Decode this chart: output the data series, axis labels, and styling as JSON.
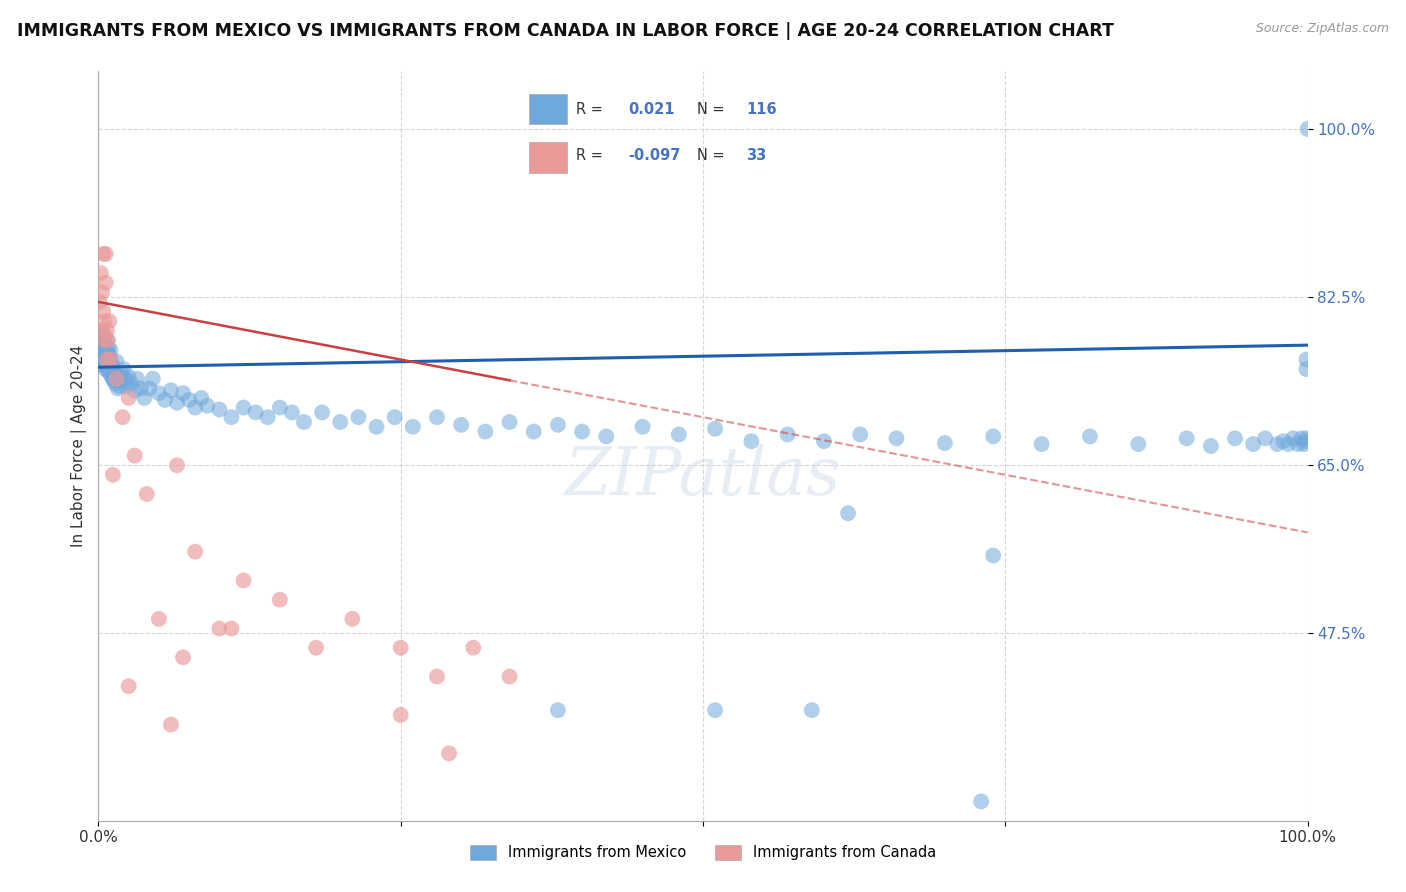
{
  "title": "IMMIGRANTS FROM MEXICO VS IMMIGRANTS FROM CANADA IN LABOR FORCE | AGE 20-24 CORRELATION CHART",
  "source": "Source: ZipAtlas.com",
  "ylabel": "In Labor Force | Age 20-24",
  "legend_label_mexico": "Immigrants from Mexico",
  "legend_label_canada": "Immigrants from Canada",
  "mexico_color": "#6fa8dc",
  "canada_color": "#ea9999",
  "mexico_line_color": "#1f5fad",
  "canada_line_color": "#c94040",
  "background_color": "#ffffff",
  "grid_color": "#cccccc",
  "watermark": "ZIPatlas",
  "mexico_R": 0.021,
  "mexico_N": 116,
  "canada_R": -0.097,
  "canada_N": 33,
  "xlim": [
    0.0,
    1.0
  ],
  "ylim": [
    0.28,
    1.06
  ],
  "yticks": [
    0.475,
    0.65,
    0.825,
    1.0
  ],
  "ytick_labels": [
    "47.5%",
    "65.0%",
    "82.5%",
    "100.0%"
  ],
  "mexico_x": [
    0.001,
    0.001,
    0.002,
    0.002,
    0.002,
    0.003,
    0.003,
    0.003,
    0.003,
    0.004,
    0.004,
    0.004,
    0.005,
    0.005,
    0.005,
    0.005,
    0.006,
    0.006,
    0.006,
    0.007,
    0.007,
    0.007,
    0.008,
    0.008,
    0.008,
    0.009,
    0.009,
    0.01,
    0.01,
    0.01,
    0.011,
    0.011,
    0.012,
    0.012,
    0.013,
    0.013,
    0.014,
    0.015,
    0.015,
    0.016,
    0.017,
    0.018,
    0.019,
    0.02,
    0.021,
    0.022,
    0.023,
    0.025,
    0.027,
    0.03,
    0.032,
    0.035,
    0.038,
    0.042,
    0.045,
    0.05,
    0.055,
    0.06,
    0.065,
    0.07,
    0.075,
    0.08,
    0.085,
    0.09,
    0.1,
    0.11,
    0.12,
    0.13,
    0.14,
    0.15,
    0.16,
    0.17,
    0.185,
    0.2,
    0.215,
    0.23,
    0.245,
    0.26,
    0.28,
    0.3,
    0.32,
    0.34,
    0.36,
    0.38,
    0.4,
    0.42,
    0.45,
    0.48,
    0.51,
    0.54,
    0.57,
    0.6,
    0.63,
    0.66,
    0.7,
    0.74,
    0.78,
    0.82,
    0.86,
    0.9,
    0.92,
    0.94,
    0.955,
    0.965,
    0.975,
    0.98,
    0.984,
    0.988,
    0.992,
    0.995,
    0.997,
    0.998,
    0.999,
    0.999,
    0.999,
    1.0
  ],
  "mexico_y": [
    0.755,
    0.76,
    0.78,
    0.77,
    0.79,
    0.77,
    0.755,
    0.765,
    0.775,
    0.76,
    0.77,
    0.78,
    0.755,
    0.765,
    0.775,
    0.785,
    0.75,
    0.762,
    0.77,
    0.755,
    0.768,
    0.78,
    0.748,
    0.76,
    0.772,
    0.75,
    0.765,
    0.745,
    0.76,
    0.77,
    0.742,
    0.755,
    0.74,
    0.752,
    0.738,
    0.748,
    0.735,
    0.745,
    0.758,
    0.73,
    0.742,
    0.732,
    0.745,
    0.738,
    0.75,
    0.74,
    0.732,
    0.742,
    0.735,
    0.728,
    0.74,
    0.73,
    0.72,
    0.73,
    0.74,
    0.725,
    0.718,
    0.728,
    0.715,
    0.725,
    0.718,
    0.71,
    0.72,
    0.712,
    0.708,
    0.7,
    0.71,
    0.705,
    0.7,
    0.71,
    0.705,
    0.695,
    0.705,
    0.695,
    0.7,
    0.69,
    0.7,
    0.69,
    0.7,
    0.692,
    0.685,
    0.695,
    0.685,
    0.692,
    0.685,
    0.68,
    0.69,
    0.682,
    0.688,
    0.675,
    0.682,
    0.675,
    0.682,
    0.678,
    0.673,
    0.68,
    0.672,
    0.68,
    0.672,
    0.678,
    0.67,
    0.678,
    0.672,
    0.678,
    0.672,
    0.675,
    0.672,
    0.678,
    0.672,
    0.678,
    0.672,
    0.675,
    0.678,
    0.75,
    0.76,
    1.0
  ],
  "canada_x": [
    0.001,
    0.002,
    0.003,
    0.003,
    0.004,
    0.004,
    0.005,
    0.005,
    0.006,
    0.006,
    0.007,
    0.007,
    0.008,
    0.009,
    0.01,
    0.012,
    0.015,
    0.02,
    0.025,
    0.03,
    0.04,
    0.05,
    0.065,
    0.08,
    0.1,
    0.12,
    0.15,
    0.18,
    0.21,
    0.25,
    0.28,
    0.31,
    0.34
  ],
  "canada_y": [
    0.82,
    0.85,
    0.79,
    0.83,
    0.81,
    0.87,
    0.8,
    0.78,
    0.84,
    0.87,
    0.79,
    0.76,
    0.78,
    0.8,
    0.76,
    0.64,
    0.74,
    0.7,
    0.72,
    0.66,
    0.62,
    0.49,
    0.65,
    0.56,
    0.48,
    0.53,
    0.51,
    0.46,
    0.49,
    0.46,
    0.43,
    0.46,
    0.43
  ],
  "canada_outlier_x": [
    0.025,
    0.06,
    0.07,
    0.11,
    0.25,
    0.29
  ],
  "canada_outlier_y": [
    0.42,
    0.38,
    0.45,
    0.48,
    0.39,
    0.35
  ],
  "mexico_low_x": [
    0.38,
    0.51,
    0.59,
    0.62,
    0.74,
    0.73
  ],
  "mexico_low_y": [
    0.395,
    0.395,
    0.395,
    0.6,
    0.556,
    0.3
  ]
}
